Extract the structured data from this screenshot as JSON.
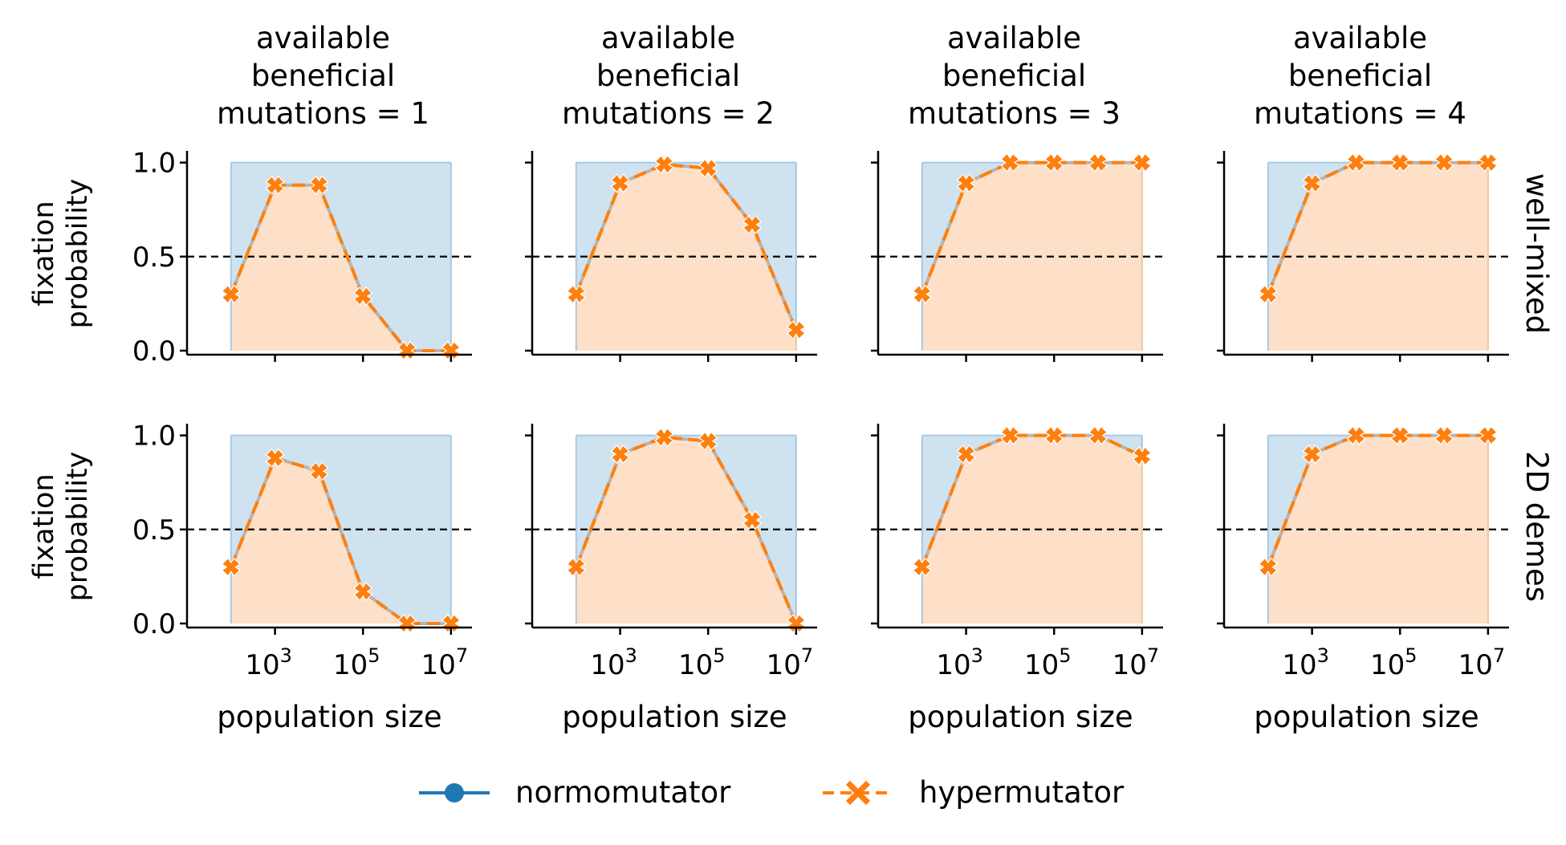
{
  "chart_data": {
    "type": "line",
    "xscale": "log",
    "xlim": [
      10,
      30000000
    ],
    "ylim": [
      0,
      1
    ],
    "x": [
      100,
      1000,
      10000,
      100000,
      1000000,
      10000000
    ],
    "xticks": [
      1000,
      100000,
      10000000
    ],
    "xtick_labels": [
      {
        "base": "10",
        "exp": "3"
      },
      {
        "base": "10",
        "exp": "5"
      },
      {
        "base": "10",
        "exp": "7"
      }
    ],
    "yticks": [
      "0.0",
      "0.5",
      "1.0"
    ],
    "ylabel_line1": "fixation",
    "ylabel_line2": "probability",
    "xlabel": "population size",
    "reference_line_y": 0.5,
    "series_names": [
      "normomutator",
      "hypermutator"
    ],
    "colors": {
      "normomutator": "#1f77b4",
      "hypermutator": "#ff7f0e",
      "normo_fill": "#cfe2f0",
      "hyper_fill": "#fde0c7"
    },
    "column_titles": [
      [
        "available",
        "beneficial",
        "mutations = 1"
      ],
      [
        "available",
        "beneficial",
        "mutations = 2"
      ],
      [
        "available",
        "beneficial",
        "mutations = 3"
      ],
      [
        "available",
        "beneficial",
        "mutations = 4"
      ]
    ],
    "row_labels": [
      "well-mixed",
      "2D demes"
    ],
    "panels": [
      {
        "row": "well-mixed",
        "mutations": 1,
        "normomutator": [
          1,
          1,
          1,
          1,
          1,
          1
        ],
        "hypermutator": [
          0.3,
          0.88,
          0.88,
          0.29,
          0.0,
          0.0
        ]
      },
      {
        "row": "well-mixed",
        "mutations": 2,
        "normomutator": [
          1,
          1,
          1,
          1,
          1,
          1
        ],
        "hypermutator": [
          0.3,
          0.89,
          0.99,
          0.97,
          0.67,
          0.11
        ]
      },
      {
        "row": "well-mixed",
        "mutations": 3,
        "normomutator": [
          1,
          1,
          1,
          1,
          1,
          1
        ],
        "hypermutator": [
          0.3,
          0.89,
          1.0,
          1.0,
          1.0,
          1.0
        ]
      },
      {
        "row": "well-mixed",
        "mutations": 4,
        "normomutator": [
          1,
          1,
          1,
          1,
          1,
          1
        ],
        "hypermutator": [
          0.3,
          0.89,
          1.0,
          1.0,
          1.0,
          1.0
        ]
      },
      {
        "row": "2D demes",
        "mutations": 1,
        "normomutator": [
          1,
          1,
          1,
          1,
          1,
          1
        ],
        "hypermutator": [
          0.3,
          0.88,
          0.81,
          0.17,
          0.0,
          0.0
        ]
      },
      {
        "row": "2D demes",
        "mutations": 2,
        "normomutator": [
          1,
          1,
          1,
          1,
          1,
          1
        ],
        "hypermutator": [
          0.3,
          0.9,
          0.99,
          0.97,
          0.55,
          0.0
        ]
      },
      {
        "row": "2D demes",
        "mutations": 3,
        "normomutator": [
          1,
          1,
          1,
          1,
          1,
          1
        ],
        "hypermutator": [
          0.3,
          0.9,
          1.0,
          1.0,
          1.0,
          0.89
        ]
      },
      {
        "row": "2D demes",
        "mutations": 4,
        "normomutator": [
          1,
          1,
          1,
          1,
          1,
          1
        ],
        "hypermutator": [
          0.3,
          0.9,
          1.0,
          1.0,
          1.0,
          1.0
        ]
      }
    ]
  },
  "legend": {
    "normomutator": "normomutator",
    "hypermutator": "hypermutator"
  }
}
